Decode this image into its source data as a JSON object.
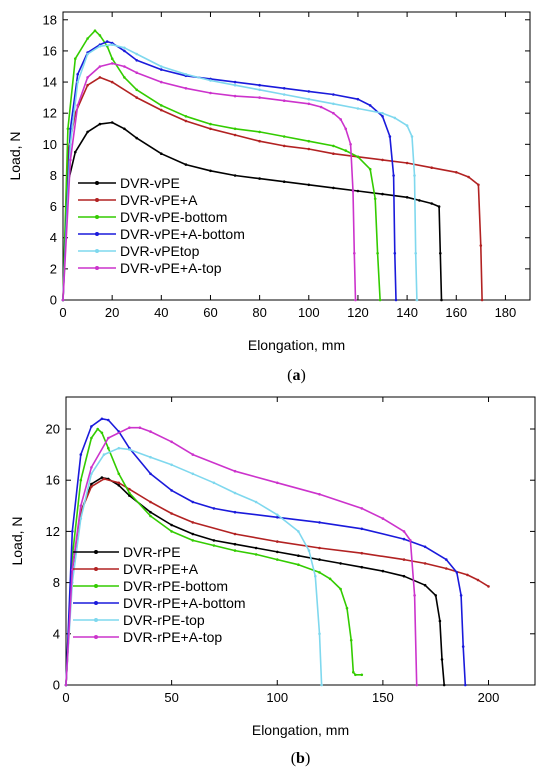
{
  "chart_data": [
    {
      "type": "line",
      "panel_label": "a",
      "xlabel": "Elongation, mm",
      "ylabel": "Load, N",
      "xlim": [
        0,
        190
      ],
      "ylim": [
        0,
        18.5
      ],
      "xticks": [
        0,
        20,
        40,
        60,
        80,
        100,
        120,
        140,
        160,
        180
      ],
      "yticks": [
        0,
        2,
        4,
        6,
        8,
        10,
        12,
        14,
        16,
        18
      ],
      "legend_position": "lower-left",
      "series": [
        {
          "name": "DVR-vPE",
          "color": "#000000",
          "x": [
            0,
            2,
            5,
            10,
            15,
            20,
            25,
            30,
            40,
            50,
            60,
            70,
            80,
            90,
            100,
            110,
            120,
            130,
            140,
            145,
            150,
            153,
            153.5,
            154
          ],
          "y": [
            0,
            7.5,
            9.5,
            10.8,
            11.3,
            11.4,
            11.0,
            10.4,
            9.4,
            8.7,
            8.3,
            8.0,
            7.8,
            7.6,
            7.4,
            7.2,
            7.0,
            6.8,
            6.6,
            6.4,
            6.2,
            6.0,
            3.0,
            0
          ]
        },
        {
          "name": "DVR-vPE+A",
          "color": "#b22222",
          "x": [
            0,
            2,
            5,
            10,
            15,
            20,
            30,
            40,
            50,
            60,
            70,
            80,
            90,
            100,
            110,
            120,
            130,
            140,
            150,
            160,
            165,
            169,
            170,
            170.5
          ],
          "y": [
            0,
            9.5,
            12.0,
            13.8,
            14.3,
            14.0,
            13.0,
            12.2,
            11.5,
            11.0,
            10.6,
            10.2,
            9.9,
            9.7,
            9.4,
            9.2,
            9.0,
            8.8,
            8.5,
            8.2,
            7.9,
            7.4,
            3.5,
            0
          ]
        },
        {
          "name": "DVR-vPE-bottom",
          "color": "#33cc00",
          "x": [
            0,
            2,
            5,
            10,
            13,
            15,
            18,
            20,
            25,
            30,
            40,
            50,
            60,
            70,
            80,
            90,
            100,
            110,
            115,
            120,
            125,
            127,
            128,
            129
          ],
          "y": [
            0,
            11.0,
            15.5,
            16.8,
            17.3,
            17.0,
            16.3,
            15.5,
            14.3,
            13.5,
            12.5,
            11.8,
            11.3,
            11.0,
            10.8,
            10.5,
            10.2,
            9.9,
            9.6,
            9.2,
            8.4,
            6.5,
            3.0,
            0
          ]
        },
        {
          "name": "DVR-vPE+A-bottom",
          "color": "#1a1adb",
          "x": [
            0,
            3,
            6,
            10,
            15,
            18,
            20,
            25,
            30,
            40,
            50,
            60,
            70,
            80,
            90,
            100,
            110,
            120,
            125,
            130,
            133,
            134.5,
            135,
            135.5
          ],
          "y": [
            0,
            11.0,
            14.5,
            15.9,
            16.4,
            16.6,
            16.5,
            16.0,
            15.4,
            14.8,
            14.4,
            14.2,
            14.0,
            13.8,
            13.6,
            13.4,
            13.2,
            12.9,
            12.5,
            11.8,
            10.5,
            8.0,
            3.0,
            0
          ]
        },
        {
          "name": "DVR-vPEtop",
          "color": "#7fd8ee",
          "x": [
            0,
            3,
            6,
            10,
            15,
            20,
            25,
            30,
            40,
            50,
            60,
            70,
            80,
            90,
            100,
            110,
            120,
            130,
            135,
            140,
            142,
            143,
            143.5,
            144
          ],
          "y": [
            0,
            10.0,
            14.0,
            15.8,
            16.3,
            16.4,
            16.2,
            15.8,
            15.0,
            14.5,
            14.1,
            13.8,
            13.5,
            13.2,
            12.9,
            12.6,
            12.3,
            12.0,
            11.7,
            11.2,
            10.5,
            8.0,
            3.0,
            0
          ]
        },
        {
          "name": "DVR-vPE+A-top",
          "color": "#cc33cc",
          "x": [
            0,
            3,
            6,
            10,
            15,
            20,
            25,
            30,
            40,
            50,
            60,
            70,
            80,
            90,
            100,
            105,
            110,
            113,
            115,
            117,
            118,
            118.5,
            119
          ],
          "y": [
            0,
            9.0,
            12.5,
            14.3,
            15.0,
            15.2,
            15.0,
            14.6,
            14.0,
            13.6,
            13.3,
            13.1,
            13.0,
            12.8,
            12.6,
            12.4,
            12.0,
            11.6,
            11.0,
            10.0,
            7.0,
            3.0,
            0
          ]
        }
      ]
    },
    {
      "type": "line",
      "panel_label": "b",
      "xlabel": "Elongation, mm",
      "ylabel": "Load, N",
      "xlim": [
        0,
        222
      ],
      "ylim": [
        0,
        22.5
      ],
      "xticks": [
        0,
        50,
        100,
        150,
        200
      ],
      "yticks": [
        0,
        4,
        8,
        12,
        16,
        20
      ],
      "legend_position": "lower-left",
      "series": [
        {
          "name": "DVR-rPE",
          "color": "#000000",
          "x": [
            0,
            3,
            7,
            12,
            17,
            20,
            25,
            30,
            40,
            50,
            60,
            70,
            80,
            90,
            100,
            110,
            120,
            130,
            140,
            150,
            160,
            170,
            175,
            177,
            178,
            179
          ],
          "y": [
            0,
            9.0,
            13.5,
            15.7,
            16.2,
            16.1,
            15.6,
            14.8,
            13.5,
            12.5,
            11.8,
            11.3,
            11.0,
            10.7,
            10.4,
            10.1,
            9.8,
            9.5,
            9.2,
            8.9,
            8.5,
            7.8,
            7.0,
            5.0,
            2.0,
            0
          ]
        },
        {
          "name": "DVR-rPE+A",
          "color": "#b22222",
          "x": [
            0,
            3,
            7,
            12,
            18,
            25,
            30,
            40,
            50,
            60,
            80,
            100,
            120,
            140,
            160,
            170,
            180,
            190,
            195,
            200
          ],
          "y": [
            0,
            9.0,
            13.5,
            15.5,
            16.1,
            15.8,
            15.3,
            14.3,
            13.4,
            12.7,
            11.8,
            11.2,
            10.7,
            10.3,
            9.8,
            9.5,
            9.1,
            8.6,
            8.2,
            7.7
          ]
        },
        {
          "name": "DVR-rPE-bottom",
          "color": "#33cc00",
          "x": [
            0,
            3,
            7,
            12,
            15,
            17,
            20,
            25,
            30,
            40,
            50,
            60,
            70,
            80,
            90,
            100,
            110,
            120,
            125,
            130,
            133,
            135,
            136,
            137,
            140
          ],
          "y": [
            0,
            10.0,
            16.0,
            19.3,
            20.0,
            19.7,
            18.5,
            16.5,
            15.0,
            13.2,
            12.0,
            11.3,
            10.9,
            10.5,
            10.2,
            9.8,
            9.4,
            8.8,
            8.3,
            7.5,
            6.0,
            3.5,
            1.0,
            0.8,
            0.8
          ]
        },
        {
          "name": "DVR-rPE+A-bottom",
          "color": "#1a1adb",
          "x": [
            0,
            3,
            7,
            12,
            17,
            20,
            25,
            30,
            40,
            50,
            60,
            70,
            80,
            100,
            120,
            140,
            160,
            170,
            180,
            185,
            187,
            188,
            189
          ],
          "y": [
            0,
            12.0,
            18.0,
            20.2,
            20.8,
            20.7,
            19.8,
            18.5,
            16.5,
            15.2,
            14.3,
            13.8,
            13.5,
            13.1,
            12.7,
            12.2,
            11.4,
            10.8,
            9.8,
            8.8,
            7.0,
            3.0,
            0
          ]
        },
        {
          "name": "DVR-rPE-top",
          "color": "#7fd8ee",
          "x": [
            0,
            3,
            7,
            12,
            18,
            25,
            30,
            40,
            50,
            60,
            70,
            80,
            90,
            100,
            110,
            115,
            118,
            120,
            121
          ],
          "y": [
            0,
            8.0,
            13.0,
            16.5,
            18.0,
            18.5,
            18.4,
            17.8,
            17.2,
            16.5,
            15.8,
            15.0,
            14.3,
            13.3,
            12.0,
            10.5,
            8.5,
            4.0,
            0
          ]
        },
        {
          "name": "DVR-rPE+A-top",
          "color": "#cc33cc",
          "x": [
            0,
            3,
            7,
            12,
            20,
            30,
            35,
            40,
            50,
            60,
            80,
            100,
            120,
            140,
            150,
            160,
            163,
            165,
            166
          ],
          "y": [
            0,
            9.0,
            14.0,
            17.0,
            19.3,
            20.1,
            20.1,
            19.8,
            19.0,
            18.0,
            16.7,
            15.8,
            14.9,
            13.8,
            13.0,
            12.0,
            11.3,
            7.0,
            0
          ]
        }
      ]
    }
  ]
}
